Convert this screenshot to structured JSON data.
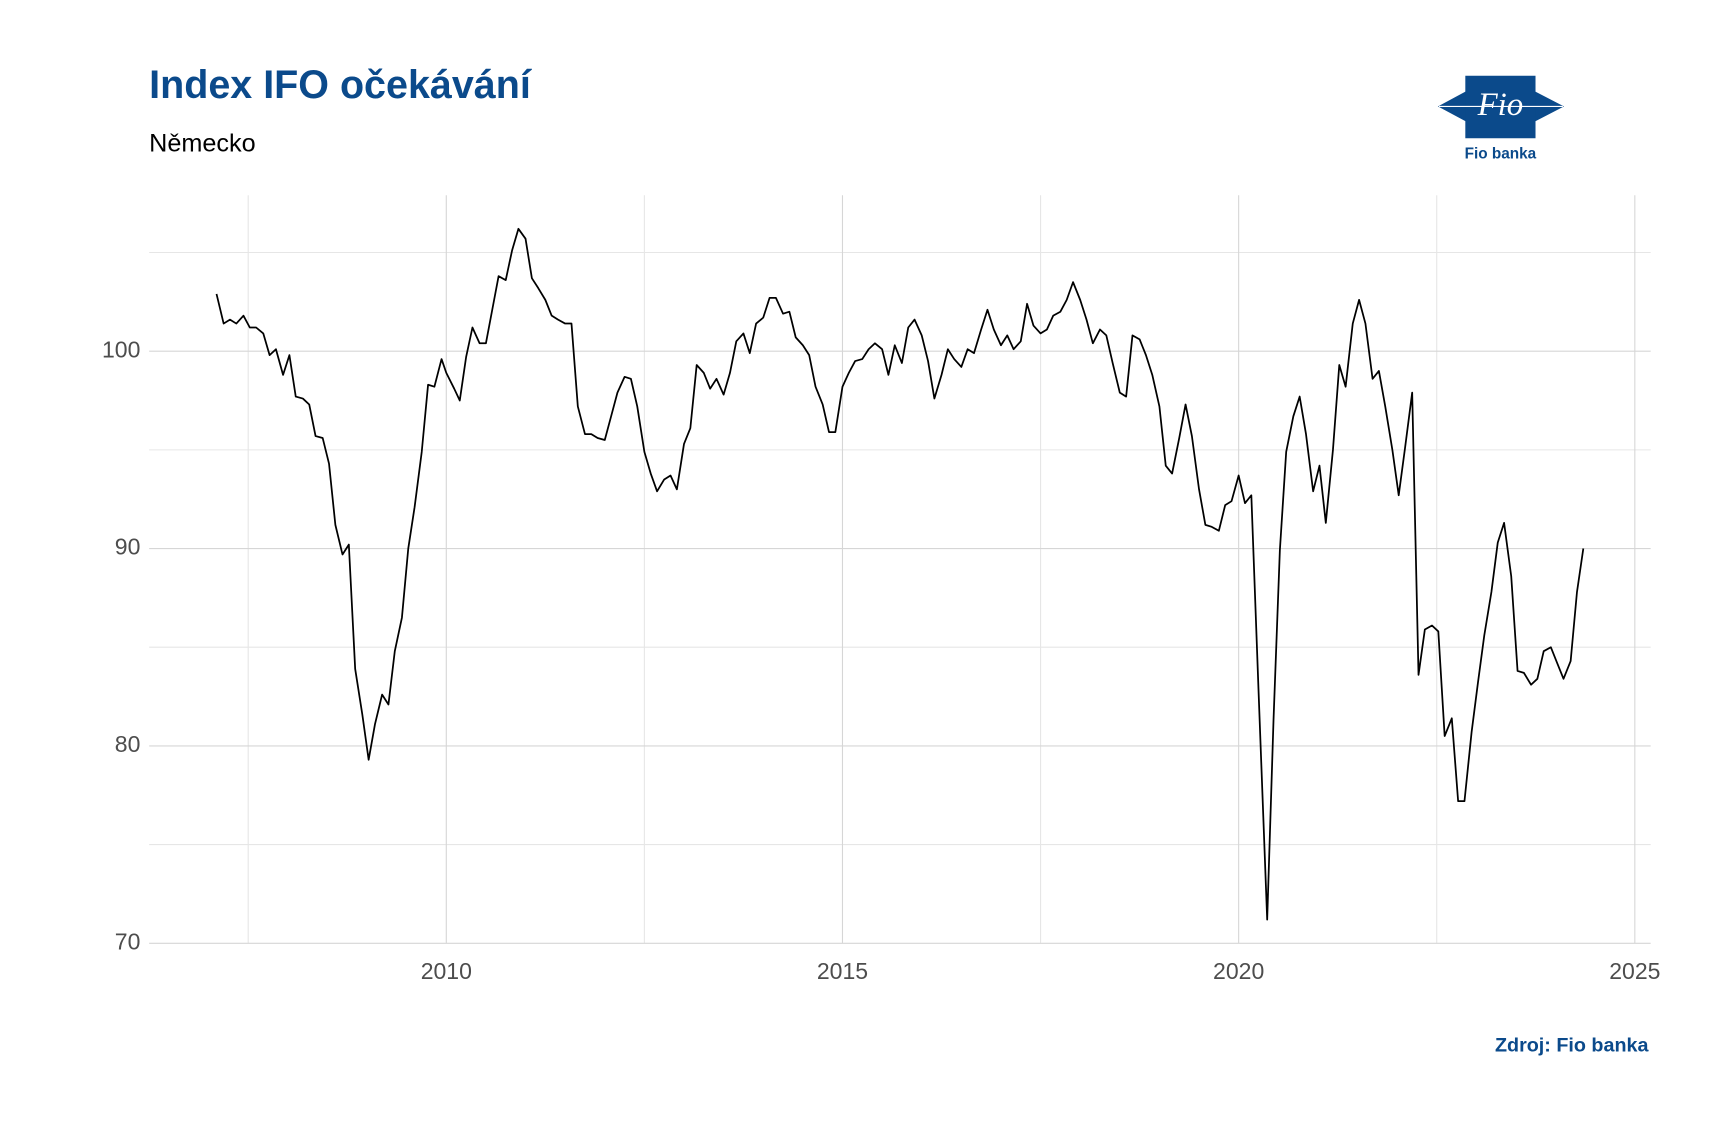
{
  "chart_data": {
    "type": "line",
    "title": "Index IFO očekávání",
    "subtitle": "Německo",
    "source": "Zdroj: Fio banka",
    "logo_text": "Fio",
    "logo_caption": "Fio banka",
    "color": "#000000",
    "grid": true,
    "xlim": [
      2006.25,
      2025.2
    ],
    "xticks": [
      2010,
      2015,
      2020,
      2025
    ],
    "x_minor_ticks": [
      2007.5,
      2012.5,
      2017.5,
      2022.5
    ],
    "ylim": [
      70,
      107.9
    ],
    "yticks": [
      70,
      80,
      90,
      100
    ],
    "y_minor_ticks": [
      75,
      85,
      95,
      105
    ],
    "x": [
      2007.1,
      2007.19,
      2007.27,
      2007.35,
      2007.44,
      2007.52,
      2007.6,
      2007.69,
      2007.77,
      2007.85,
      2007.94,
      2008.02,
      2008.1,
      2008.19,
      2008.27,
      2008.35,
      2008.44,
      2008.52,
      2008.6,
      2008.69,
      2008.77,
      2008.85,
      2008.94,
      2009.02,
      2009.1,
      2009.19,
      2009.27,
      2009.35,
      2009.44,
      2009.52,
      2009.6,
      2009.69,
      2009.77,
      2009.85,
      2009.94,
      2010.0,
      2010.1,
      2010.17,
      2010.25,
      2010.33,
      2010.42,
      2010.5,
      2010.58,
      2010.66,
      2010.75,
      2010.83,
      2010.91,
      2011.0,
      2011.08,
      2011.16,
      2011.25,
      2011.33,
      2011.41,
      2011.5,
      2011.58,
      2011.66,
      2011.75,
      2011.83,
      2011.91,
      2012.0,
      2012.08,
      2012.16,
      2012.25,
      2012.33,
      2012.41,
      2012.5,
      2012.58,
      2012.66,
      2012.75,
      2012.83,
      2012.91,
      2013.0,
      2013.08,
      2013.16,
      2013.25,
      2013.33,
      2013.41,
      2013.5,
      2013.58,
      2013.66,
      2013.75,
      2013.83,
      2013.91,
      2014.0,
      2014.08,
      2014.16,
      2014.25,
      2014.33,
      2014.41,
      2014.5,
      2014.58,
      2014.66,
      2014.75,
      2014.83,
      2014.91,
      2015.0,
      2015.08,
      2015.16,
      2015.25,
      2015.33,
      2015.41,
      2015.5,
      2015.58,
      2015.66,
      2015.75,
      2015.83,
      2015.91,
      2016.0,
      2016.08,
      2016.16,
      2016.25,
      2016.33,
      2016.41,
      2016.5,
      2016.58,
      2016.66,
      2016.75,
      2016.83,
      2016.91,
      2017.0,
      2017.08,
      2017.16,
      2017.25,
      2017.33,
      2017.41,
      2017.5,
      2017.58,
      2017.66,
      2017.75,
      2017.83,
      2017.91,
      2018.0,
      2018.08,
      2018.16,
      2018.25,
      2018.33,
      2018.41,
      2018.5,
      2018.58,
      2018.66,
      2018.75,
      2018.83,
      2018.91,
      2019.0,
      2019.08,
      2019.16,
      2019.25,
      2019.33,
      2019.41,
      2019.5,
      2019.58,
      2019.66,
      2019.75,
      2019.83,
      2019.91,
      2020.0,
      2020.08,
      2020.16,
      2020.25,
      2020.36,
      2020.44,
      2020.52,
      2020.6,
      2020.69,
      2020.77,
      2020.85,
      2020.94,
      2021.02,
      2021.1,
      2021.19,
      2021.27,
      2021.35,
      2021.44,
      2021.52,
      2021.6,
      2021.69,
      2021.77,
      2021.85,
      2021.94,
      2022.02,
      2022.1,
      2022.19,
      2022.27,
      2022.35,
      2022.44,
      2022.52,
      2022.6,
      2022.69,
      2022.77,
      2022.85,
      2022.94,
      2023.02,
      2023.1,
      2023.19,
      2023.27,
      2023.35,
      2023.44,
      2023.52,
      2023.6,
      2023.69,
      2023.77,
      2023.85,
      2023.94,
      2024.02,
      2024.1,
      2024.19,
      2024.27,
      2024.35
    ],
    "values": [
      102.9,
      101.4,
      101.6,
      101.4,
      101.8,
      101.2,
      101.2,
      100.9,
      99.8,
      100.1,
      98.8,
      99.8,
      97.7,
      97.6,
      97.3,
      95.7,
      95.6,
      94.3,
      91.2,
      89.7,
      90.2,
      83.9,
      81.6,
      79.3,
      81.1,
      82.6,
      82.1,
      84.8,
      86.5,
      90.0,
      92.1,
      94.9,
      98.3,
      98.2,
      99.6,
      98.9,
      98.1,
      97.5,
      99.7,
      101.2,
      100.4,
      100.4,
      102.1,
      103.8,
      103.6,
      105.1,
      106.2,
      105.7,
      103.7,
      103.2,
      102.6,
      101.8,
      101.6,
      101.4,
      101.4,
      97.2,
      95.8,
      95.8,
      95.6,
      95.5,
      96.7,
      97.9,
      98.7,
      98.6,
      97.2,
      94.9,
      93.8,
      92.9,
      93.5,
      93.7,
      93.0,
      95.3,
      96.1,
      99.3,
      98.9,
      98.1,
      98.6,
      97.8,
      98.9,
      100.5,
      100.9,
      99.9,
      101.4,
      101.7,
      102.7,
      102.7,
      101.9,
      102.0,
      100.7,
      100.3,
      99.8,
      98.2,
      97.3,
      95.9,
      95.9,
      98.2,
      98.9,
      99.5,
      99.6,
      100.1,
      100.4,
      100.1,
      98.8,
      100.3,
      99.4,
      101.2,
      101.6,
      100.8,
      99.5,
      97.6,
      98.8,
      100.1,
      99.6,
      99.2,
      100.1,
      99.9,
      101.1,
      102.1,
      101.1,
      100.3,
      100.8,
      100.1,
      100.5,
      102.4,
      101.3,
      100.9,
      101.1,
      101.8,
      102.0,
      102.6,
      103.5,
      102.6,
      101.6,
      100.4,
      101.1,
      100.8,
      99.4,
      97.9,
      97.7,
      100.8,
      100.6,
      99.8,
      98.8,
      97.2,
      94.2,
      93.8,
      95.6,
      97.3,
      95.7,
      93.0,
      91.2,
      91.1,
      90.9,
      92.2,
      92.4,
      93.7,
      92.3,
      92.7,
      82.9,
      71.2,
      81.3,
      89.9,
      94.9,
      96.7,
      97.7,
      95.8,
      92.9,
      94.2,
      91.3,
      95.0,
      99.3,
      98.2,
      101.4,
      102.6,
      101.4,
      98.6,
      99.0,
      97.2,
      95.0,
      92.7,
      95.1,
      97.9,
      83.6,
      85.9,
      86.1,
      85.8,
      80.5,
      81.4,
      77.2,
      77.2,
      80.7,
      83.2,
      85.6,
      87.8,
      90.3,
      91.3,
      88.6,
      83.8,
      83.7,
      83.1,
      83.4,
      84.8,
      85.0,
      84.2,
      83.4,
      84.3,
      87.8,
      90.0
    ]
  }
}
